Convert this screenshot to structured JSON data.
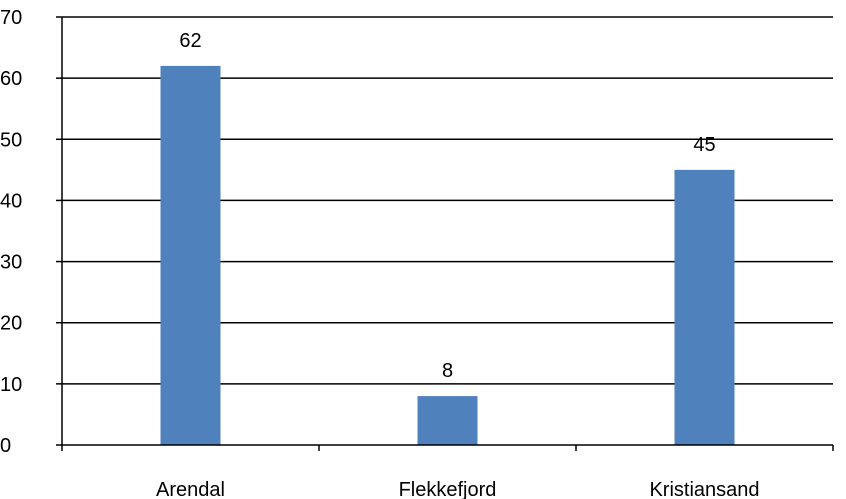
{
  "chart_data": {
    "type": "bar",
    "categories": [
      "Arendal",
      "Flekkefjord",
      "Kristiansand"
    ],
    "values": [
      62,
      8,
      45
    ],
    "data_labels": [
      "62",
      "8",
      "45"
    ],
    "title": "",
    "xlabel": "",
    "ylabel": "",
    "ylim": [
      0,
      70
    ],
    "yticks": [
      0,
      10,
      20,
      30,
      40,
      50,
      60,
      70
    ],
    "grid": true,
    "legend": "none",
    "bar_color": "#4f81bd"
  }
}
